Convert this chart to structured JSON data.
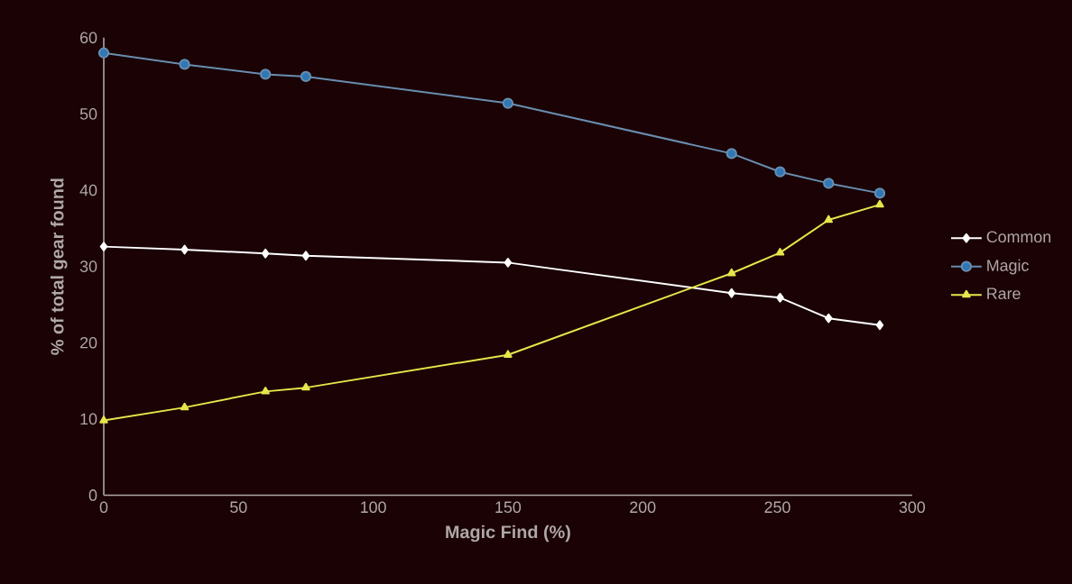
{
  "chart_data": {
    "type": "line",
    "xlabel": "Magic Find (%)",
    "ylabel": "% of total gear found",
    "xlim": [
      0,
      300
    ],
    "xticks": [
      0,
      50,
      100,
      150,
      200,
      250,
      300
    ],
    "ylim": [
      0,
      60
    ],
    "yticks": [
      0,
      10,
      20,
      30,
      40,
      50,
      60
    ],
    "x": [
      0,
      30,
      60,
      75,
      150,
      233,
      251,
      269,
      288
    ],
    "legend": "right",
    "grid": false,
    "series": [
      {
        "name": "Common",
        "color": "#ffffff",
        "marker": "diamond",
        "values": [
          32.6,
          32.2,
          31.7,
          31.4,
          30.5,
          26.5,
          25.9,
          23.2,
          22.3
        ]
      },
      {
        "name": "Magic",
        "color": "#2f77b5",
        "marker": "circle",
        "values": [
          58.0,
          56.5,
          55.2,
          54.9,
          51.4,
          44.8,
          42.4,
          40.9,
          39.6
        ]
      },
      {
        "name": "Rare",
        "color": "#e6e64c",
        "marker": "triangle",
        "values": [
          9.8,
          11.5,
          13.6,
          14.1,
          18.4,
          29.1,
          31.8,
          36.1,
          38.1
        ]
      }
    ]
  }
}
